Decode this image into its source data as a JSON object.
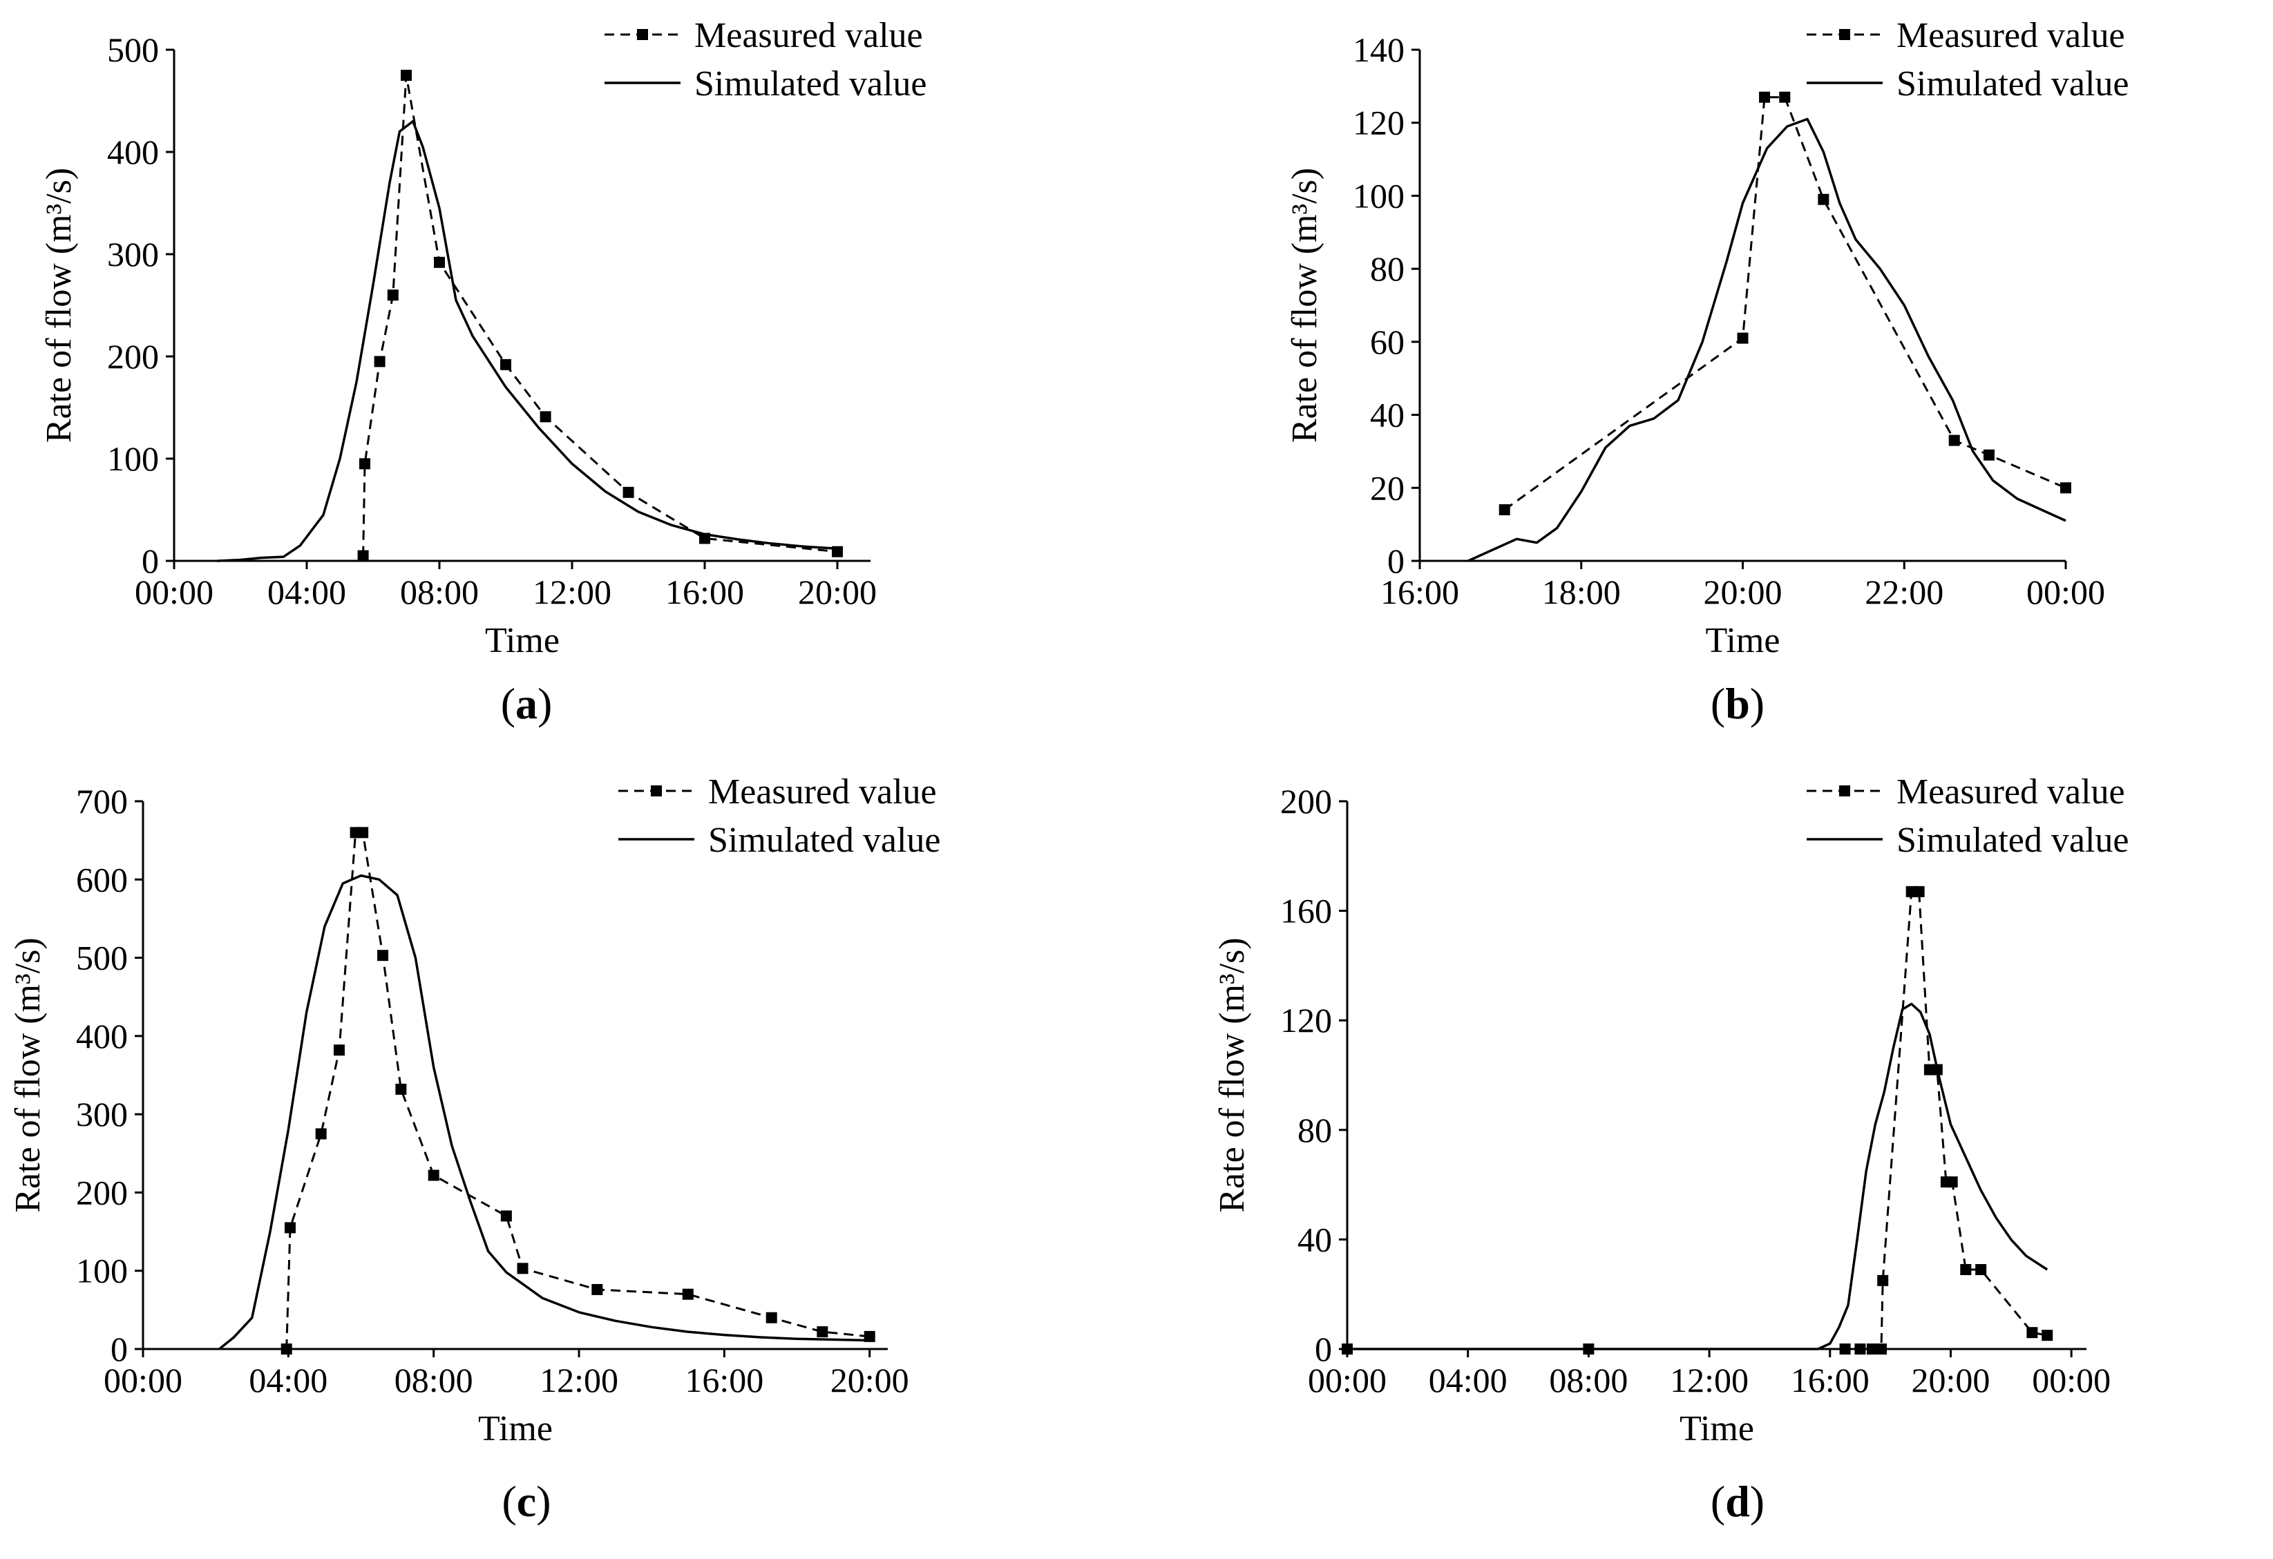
{
  "chart_data": [
    {
      "type": "line",
      "panel_label": "(a)",
      "panel_letter": "a",
      "xlabel": "Time",
      "ylabel": "Rate of flow (m³/s)",
      "xlim": [
        0,
        21
      ],
      "ylim": [
        0,
        500
      ],
      "x_ticks": [
        0,
        4,
        8,
        12,
        16,
        20
      ],
      "x_tick_labels": [
        "00:00",
        "04:00",
        "08:00",
        "12:00",
        "16:00",
        "20:00"
      ],
      "y_ticks": [
        0,
        100,
        200,
        300,
        400,
        500
      ],
      "y_tick_labels": [
        "0",
        "100",
        "200",
        "300",
        "400",
        "500"
      ],
      "legend_position": "top-right",
      "series": [
        {
          "name": "Measured value",
          "style": "dashed-square",
          "x": [
            5.7,
            5.75,
            6.2,
            6.6,
            7.0,
            8.0,
            10.0,
            11.2,
            13.7,
            16.0,
            20.0
          ],
          "y": [
            5,
            95,
            195,
            260,
            475,
            292,
            192,
            141,
            67,
            22,
            9
          ]
        },
        {
          "name": "Simulated value",
          "style": "solid",
          "x": [
            1.3,
            2.0,
            2.6,
            3.3,
            3.8,
            4.5,
            5.0,
            5.5,
            6.0,
            6.5,
            6.8,
            7.2,
            7.5,
            8.0,
            8.5,
            9.0,
            10.0,
            11.0,
            12.0,
            13.0,
            14.0,
            15.0,
            16.0,
            17.0,
            18.0,
            19.0,
            20.0
          ],
          "y": [
            0,
            1,
            3,
            4,
            15,
            45,
            100,
            175,
            270,
            370,
            420,
            430,
            405,
            345,
            255,
            220,
            170,
            130,
            95,
            68,
            48,
            35,
            26,
            21,
            17,
            14,
            12
          ]
        }
      ]
    },
    {
      "type": "line",
      "panel_label": "(b)",
      "panel_letter": "b",
      "xlabel": "Time",
      "ylabel": "Rate of flow (m³/s)",
      "xlim": [
        16,
        24
      ],
      "ylim": [
        0,
        140
      ],
      "x_ticks": [
        16,
        18,
        20,
        22,
        24
      ],
      "x_tick_labels": [
        "16:00",
        "18:00",
        "20:00",
        "22:00",
        "00:00"
      ],
      "y_ticks": [
        0,
        20,
        40,
        60,
        80,
        100,
        120,
        140
      ],
      "y_tick_labels": [
        "0",
        "20",
        "40",
        "60",
        "80",
        "100",
        "120",
        "140"
      ],
      "legend_position": "top-right",
      "series": [
        {
          "name": "Measured value",
          "style": "dashed-square",
          "x": [
            17.05,
            20.0,
            20.27,
            20.52,
            21.0,
            22.62,
            23.05,
            24.0
          ],
          "y": [
            14,
            61,
            127,
            127,
            99,
            33,
            29,
            20
          ]
        },
        {
          "name": "Simulated value",
          "style": "solid",
          "x": [
            16.6,
            16.9,
            17.2,
            17.45,
            17.7,
            18.0,
            18.3,
            18.6,
            18.9,
            19.2,
            19.5,
            19.8,
            20.0,
            20.3,
            20.55,
            20.8,
            21.0,
            21.2,
            21.4,
            21.7,
            22.0,
            22.3,
            22.6,
            22.85,
            23.1,
            23.4,
            23.7,
            24.0
          ],
          "y": [
            0,
            3,
            6,
            5,
            9,
            19,
            31,
            37,
            39,
            44,
            60,
            82,
            98,
            113,
            119,
            121,
            112,
            98,
            88,
            80,
            70,
            56,
            44,
            30,
            22,
            17,
            14,
            11
          ]
        }
      ]
    },
    {
      "type": "line",
      "panel_label": "(c)",
      "panel_letter": "c",
      "xlabel": "Time",
      "ylabel": "Rate of flow (m³/s)",
      "xlim": [
        0,
        20.5
      ],
      "ylim": [
        0,
        700
      ],
      "x_ticks": [
        0,
        4,
        8,
        12,
        16,
        20
      ],
      "x_tick_labels": [
        "00:00",
        "04:00",
        "08:00",
        "12:00",
        "16:00",
        "20:00"
      ],
      "y_ticks": [
        0,
        100,
        200,
        300,
        400,
        500,
        600,
        700
      ],
      "y_tick_labels": [
        "0",
        "100",
        "200",
        "300",
        "400",
        "500",
        "600",
        "700"
      ],
      "legend_position": "top-right",
      "series": [
        {
          "name": "Measured value",
          "style": "dashed-square",
          "x": [
            3.95,
            4.05,
            4.9,
            5.4,
            5.85,
            6.05,
            6.6,
            7.1,
            8.0,
            10.0,
            10.45,
            12.5,
            15.0,
            17.3,
            18.7,
            20.0
          ],
          "y": [
            0,
            155,
            275,
            382,
            660,
            660,
            503,
            332,
            222,
            170,
            103,
            76,
            70,
            40,
            22,
            16
          ]
        },
        {
          "name": "Simulated value",
          "style": "solid",
          "x": [
            2.1,
            2.5,
            3.0,
            3.5,
            4.0,
            4.5,
            5.0,
            5.5,
            6.0,
            6.5,
            7.0,
            7.5,
            8.0,
            8.5,
            9.0,
            9.5,
            10.0,
            11.0,
            12.0,
            13.0,
            14.0,
            15.0,
            16.0,
            17.0,
            18.0,
            19.0,
            20.0
          ],
          "y": [
            0,
            15,
            40,
            150,
            280,
            430,
            540,
            595,
            605,
            600,
            580,
            500,
            360,
            260,
            190,
            125,
            98,
            65,
            47,
            36,
            28,
            22,
            18,
            15,
            13,
            12,
            11
          ]
        }
      ]
    },
    {
      "type": "line",
      "panel_label": "(d)",
      "panel_letter": "d",
      "xlabel": "Time",
      "ylabel": "Rate of flow (m³/s)",
      "xlim": [
        0,
        24.5
      ],
      "ylim": [
        0,
        200
      ],
      "x_ticks": [
        0,
        4,
        8,
        12,
        16,
        20,
        24
      ],
      "x_tick_labels": [
        "00:00",
        "04:00",
        "08:00",
        "12:00",
        "16:00",
        "20:00",
        "00:00"
      ],
      "y_ticks": [
        0,
        40,
        80,
        120,
        160,
        200
      ],
      "y_tick_labels": [
        "0",
        "40",
        "80",
        "120",
        "160",
        "200"
      ],
      "legend_position": "top-right",
      "series": [
        {
          "name": "Measured value",
          "style": "dashed-square",
          "x": [
            0.0,
            8.0,
            16.5,
            17.0,
            17.4,
            17.7,
            17.75,
            18.7,
            18.95,
            19.3,
            19.55,
            19.85,
            20.05,
            20.5,
            21.0,
            22.7,
            23.2
          ],
          "y": [
            0,
            0,
            0,
            0,
            0,
            0,
            25,
            167,
            167,
            102,
            102,
            61,
            61,
            29,
            29,
            6,
            5
          ]
        },
        {
          "name": "Simulated value",
          "style": "solid",
          "x": [
            0.0,
            8.0,
            15.6,
            16.0,
            16.3,
            16.6,
            16.9,
            17.2,
            17.5,
            17.8,
            18.1,
            18.4,
            18.7,
            19.0,
            19.3,
            19.6,
            20.0,
            20.5,
            21.0,
            21.5,
            22.0,
            22.5,
            23.2
          ],
          "y": [
            0,
            0,
            0,
            2,
            8,
            16,
            40,
            65,
            82,
            94,
            110,
            124,
            126,
            123,
            115,
            100,
            82,
            70,
            58,
            48,
            40,
            34,
            29
          ]
        }
      ]
    }
  ]
}
